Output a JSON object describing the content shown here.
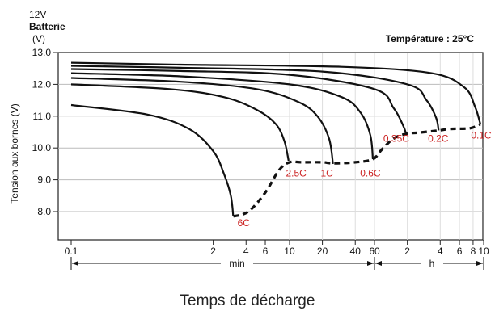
{
  "chart_data": {
    "type": "line",
    "title_lines": [
      "12V",
      "Batterie",
      "(V)"
    ],
    "annotation": "Température : 25°C",
    "ylabel": "Tension aux bornes (V)",
    "xlabel": "Temps de décharge",
    "x_unit_min": "min",
    "x_unit_h": "h",
    "ylim": [
      7.0,
      13.0
    ],
    "y_ticks": [
      "13.0",
      "12.0",
      "11.0",
      "10.0",
      "9.0",
      "8.0"
    ],
    "x_ticks_min": [
      "0.1",
      "2",
      "4",
      "6",
      "10",
      "20",
      "40",
      "60"
    ],
    "x_ticks_h": [
      "2",
      "4",
      "6",
      "8",
      "10"
    ],
    "grid": true,
    "series": [
      {
        "name": "6C",
        "label_value": [
          3.8,
          7.65
        ],
        "points": [
          [
            0.1,
            11.35
          ],
          [
            0.5,
            11.05
          ],
          [
            1.2,
            10.6
          ],
          [
            2.0,
            9.9
          ],
          [
            2.5,
            9.2
          ],
          [
            2.9,
            8.5
          ],
          [
            3.05,
            7.85
          ]
        ]
      },
      {
        "name": "2.5C",
        "label_value": [
          11.5,
          9.2
        ],
        "points": [
          [
            0.1,
            12.0
          ],
          [
            0.8,
            11.85
          ],
          [
            2.5,
            11.6
          ],
          [
            5.0,
            11.2
          ],
          [
            7.5,
            10.75
          ],
          [
            9.0,
            10.2
          ],
          [
            9.8,
            9.6
          ]
        ]
      },
      {
        "name": "1C",
        "label_value": [
          22,
          9.2
        ],
        "points": [
          [
            0.1,
            12.2
          ],
          [
            1.0,
            12.08
          ],
          [
            5.0,
            11.85
          ],
          [
            12.0,
            11.45
          ],
          [
            18.0,
            11.0
          ],
          [
            23.0,
            10.3
          ],
          [
            25.0,
            9.5
          ]
        ]
      },
      {
        "name": "0.6C",
        "label_value": [
          55,
          9.2
        ],
        "points": [
          [
            0.1,
            12.35
          ],
          [
            1.0,
            12.25
          ],
          [
            10.0,
            12.0
          ],
          [
            30.0,
            11.6
          ],
          [
            45.0,
            11.1
          ],
          [
            55.0,
            10.4
          ],
          [
            58.0,
            9.65
          ]
        ]
      },
      {
        "name": "0.35C",
        "label_value": [
          95,
          10.3
        ],
        "points": [
          [
            0.1,
            12.48
          ],
          [
            1.0,
            12.42
          ],
          [
            10.0,
            12.3
          ],
          [
            60.0,
            11.85
          ],
          [
            90.0,
            11.25
          ],
          [
            110.0,
            10.7
          ],
          [
            118.0,
            10.4
          ]
        ]
      },
      {
        "name": "0.2C",
        "label_value": [
          230,
          10.3
        ],
        "points": [
          [
            0.1,
            12.58
          ],
          [
            1.0,
            12.52
          ],
          [
            20.0,
            12.4
          ],
          [
            120.0,
            12.0
          ],
          [
            180.0,
            11.5
          ],
          [
            220.0,
            10.95
          ],
          [
            232.0,
            10.55
          ]
        ]
      },
      {
        "name": "0.1C",
        "label_value": [
          570,
          10.4
        ],
        "points": [
          [
            0.1,
            12.68
          ],
          [
            1.0,
            12.62
          ],
          [
            30.0,
            12.55
          ],
          [
            200.0,
            12.35
          ],
          [
            400.0,
            11.9
          ],
          [
            500.0,
            11.3
          ],
          [
            560.0,
            10.75
          ]
        ]
      }
    ],
    "cutoff_curve": [
      [
        3.05,
        7.85
      ],
      [
        4.2,
        8.0
      ],
      [
        6.0,
        8.6
      ],
      [
        8.0,
        9.3
      ],
      [
        10.0,
        9.55
      ],
      [
        13.0,
        9.55
      ],
      [
        20.0,
        9.55
      ],
      [
        25.0,
        9.52
      ],
      [
        40.0,
        9.55
      ],
      [
        58.0,
        9.65
      ],
      [
        70.0,
        9.95
      ],
      [
        90.0,
        10.3
      ],
      [
        118.0,
        10.45
      ],
      [
        150.0,
        10.48
      ],
      [
        232.0,
        10.55
      ],
      [
        300.0,
        10.6
      ],
      [
        450.0,
        10.62
      ],
      [
        560.0,
        10.75
      ]
    ]
  }
}
